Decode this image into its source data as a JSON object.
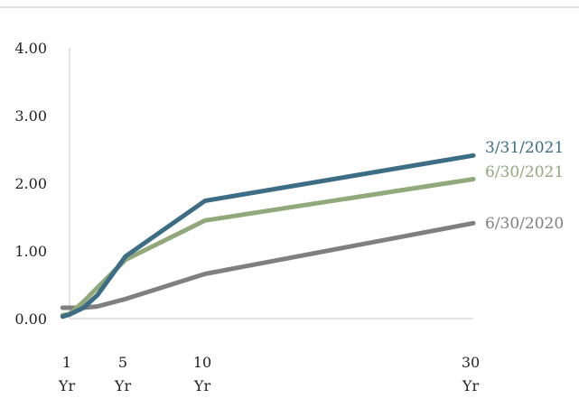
{
  "chart_data": {
    "type": "line",
    "categories": [
      "1 Yr",
      "5 Yr",
      "10 Yr",
      "30 Yr"
    ],
    "x_ticks": [
      {
        "line1": "1",
        "line2": "Yr"
      },
      {
        "line1": "5",
        "line2": "Yr"
      },
      {
        "line1": "10",
        "line2": "Yr"
      },
      {
        "line1": "30",
        "line2": "Yr"
      }
    ],
    "y_ticks": [
      "0.00",
      "1.00",
      "2.00",
      "3.00",
      "4.00"
    ],
    "ylim": [
      0,
      4
    ],
    "xlim": [
      1,
      30
    ],
    "x_scale": "piecewise-linear",
    "x_anchor_values": [
      1,
      5,
      10,
      30
    ],
    "grid": false,
    "legend": "inline-right",
    "series": [
      {
        "name": "3/31/2021",
        "color": "#3d6d85",
        "points": [
          [
            0.5,
            0.03
          ],
          [
            1,
            0.06
          ],
          [
            2,
            0.16
          ],
          [
            3,
            0.35
          ],
          [
            5,
            0.92
          ],
          [
            10,
            1.74
          ],
          [
            30,
            2.41
          ]
        ]
      },
      {
        "name": "6/30/2021",
        "color": "#91a87a",
        "points": [
          [
            0.5,
            0.05
          ],
          [
            1,
            0.07
          ],
          [
            2,
            0.25
          ],
          [
            3,
            0.46
          ],
          [
            5,
            0.87
          ],
          [
            10,
            1.45
          ],
          [
            30,
            2.06
          ]
        ]
      },
      {
        "name": "6/30/2020",
        "color": "#7f7f7f",
        "points": [
          [
            0.5,
            0.16
          ],
          [
            1,
            0.16
          ],
          [
            2,
            0.16
          ],
          [
            3,
            0.18
          ],
          [
            5,
            0.29
          ],
          [
            10,
            0.66
          ],
          [
            30,
            1.41
          ]
        ]
      }
    ]
  }
}
